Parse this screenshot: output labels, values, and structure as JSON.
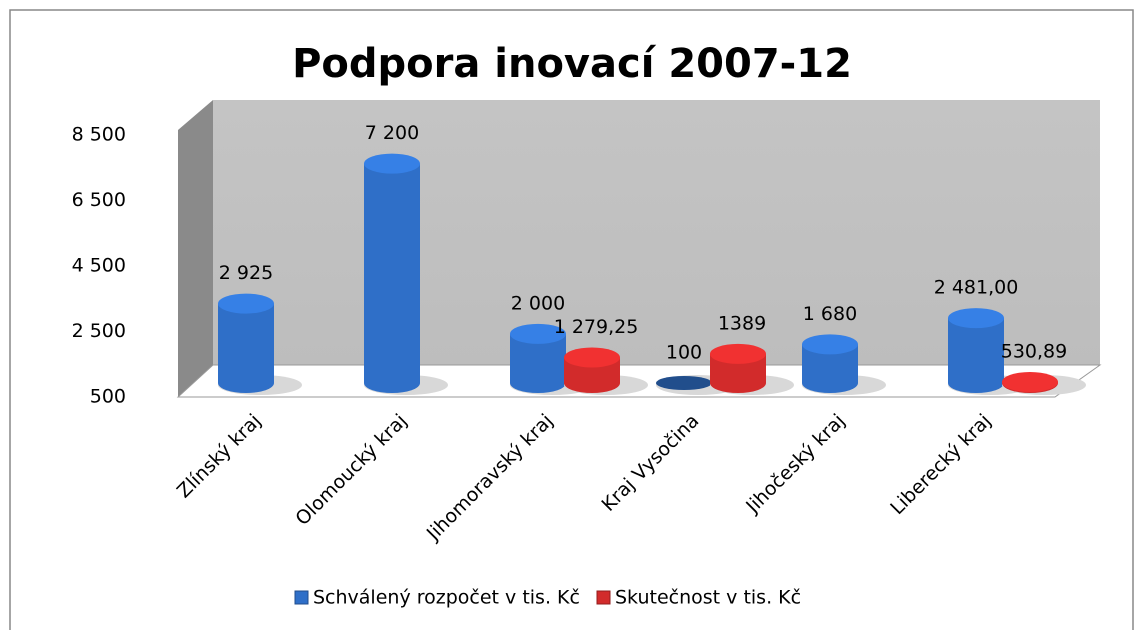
{
  "chart_data": {
    "type": "bar3d",
    "title": "Podpora inovací 2007-12",
    "categories": [
      "Zlínský kraj",
      "Olomoucký kraj",
      "Jihomoravský kraj",
      "Kraj Vysočina",
      "Jihočeský kraj",
      "Liberecký kraj"
    ],
    "series": [
      {
        "name": "Schválený rozpočet v tis. Kč",
        "color": "#2f6fc8",
        "values": [
          2925,
          7200,
          2000,
          100,
          1680,
          2481
        ],
        "value_labels": [
          "2 925",
          "7 200",
          "2 000",
          "100",
          "1 680",
          "2 481,00"
        ]
      },
      {
        "name": "Skutečnost v tis. Kč",
        "color": "#d22b2b",
        "values": [
          null,
          null,
          1279.25,
          1389,
          null,
          530.89
        ],
        "value_labels": [
          null,
          null,
          "1 279,25",
          "1389",
          null,
          "530,89"
        ]
      }
    ],
    "ylim": [
      500,
      8500
    ],
    "yticks": [
      {
        "value": 500,
        "label": "500"
      },
      {
        "value": 2500,
        "label": "2 500"
      },
      {
        "value": 4500,
        "label": "4 500"
      },
      {
        "value": 6500,
        "label": "6 500"
      },
      {
        "value": 8500,
        "label": "8 500"
      }
    ],
    "legend": "bottom"
  }
}
